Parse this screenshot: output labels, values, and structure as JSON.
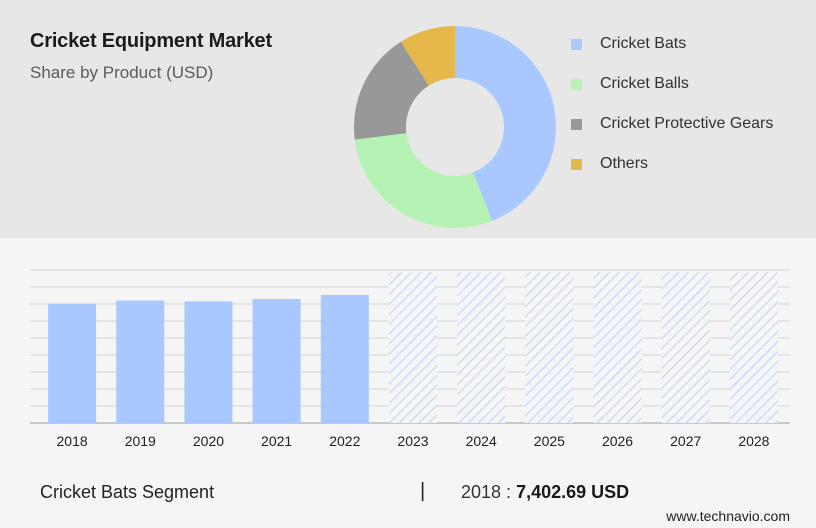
{
  "header": {
    "title": "Cricket Equipment Market",
    "subtitle": "Share by Product (USD)"
  },
  "colors": {
    "cricket_bats": "#a8c8ff",
    "cricket_balls": "#b7f2b5",
    "cricket_protective_gears": "#989898",
    "others": "#e6b84c",
    "bar_actual": "#a8c8ff",
    "bar_forecast_hatch": "#a8c8ff"
  },
  "chart_data": [
    {
      "type": "pie",
      "title": "Cricket Equipment Market",
      "subtitle": "Share by Product (USD)",
      "donut": true,
      "legend_position": "right",
      "categories": [
        "Cricket Bats",
        "Cricket Balls",
        "Cricket Protective Gears",
        "Others"
      ],
      "values": [
        44,
        29,
        18,
        9
      ]
    },
    {
      "type": "bar",
      "categories": [
        "2018",
        "2019",
        "2020",
        "2021",
        "2022",
        "2023",
        "2024",
        "2025",
        "2026",
        "2027",
        "2028"
      ],
      "values": [
        7402.69,
        7600,
        7550,
        7700,
        7950,
        null,
        null,
        null,
        null,
        null,
        null
      ],
      "forecast_categories": [
        "2023",
        "2024",
        "2025",
        "2026",
        "2027",
        "2028"
      ],
      "ylim": [
        0,
        9500
      ],
      "grid": true,
      "ylabel": "",
      "xlabel": ""
    }
  ],
  "footer": {
    "segment_label": "Cricket Bats Segment",
    "divider": "|",
    "year": "2018",
    "separator": " : ",
    "value": "7,402.69 USD",
    "source": "www.technavio.com"
  }
}
